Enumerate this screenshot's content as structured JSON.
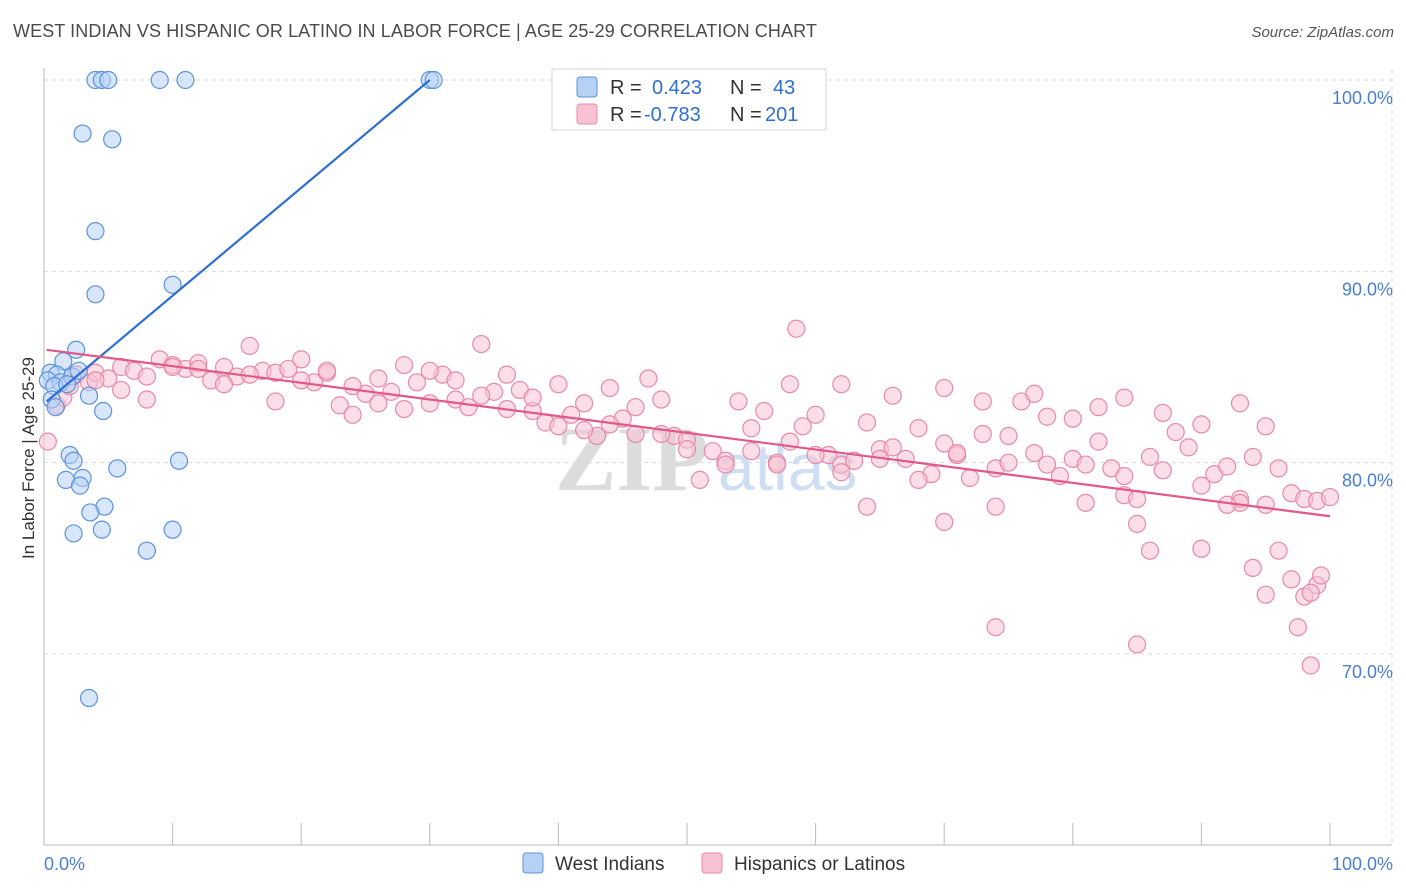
{
  "title": "WEST INDIAN VS HISPANIC OR LATINO IN LABOR FORCE | AGE 25-29 CORRELATION CHART",
  "source": "Source: ZipAtlas.com",
  "watermark": {
    "zip": "ZIP",
    "atlas": "atlas"
  },
  "colors": {
    "blue_fill": "#b7d1f5",
    "blue_stroke": "#5d93dc",
    "blue_line": "#2e6fd1",
    "pink_fill": "#f7c3d3",
    "pink_stroke": "#e889a9",
    "pink_line": "#e2588a",
    "grid": "#d9d9d9",
    "axis_text": "#4a7fcf"
  },
  "legend": {
    "rows": [
      {
        "r_label": "R =",
        "r_value": "0.423",
        "n_label": "N =",
        "n_value": "43"
      },
      {
        "r_label": "R =",
        "r_value": "-0.783",
        "n_label": "N =",
        "n_value": "201"
      }
    ]
  },
  "bottom_legend": [
    "West Indians",
    "Hispanics or Latinos"
  ],
  "chart_data": {
    "type": "scatter",
    "title": "WEST INDIAN VS HISPANIC OR LATINO IN LABOR FORCE | AGE 25-29 CORRELATION CHART",
    "ylabel": "In Labor Force | Age 25-29",
    "xlabel": "",
    "x_tick_labels": [
      "0.0%",
      "100.0%"
    ],
    "y_tick_labels": [
      "100.0%",
      "90.0%",
      "80.0%",
      "70.0%"
    ],
    "y_ticks": [
      100,
      90,
      80,
      70
    ],
    "xlim": [
      0,
      100
    ],
    "ylim": [
      60.5,
      101
    ],
    "series": [
      {
        "name": "West Indians",
        "R": 0.423,
        "N": 43,
        "trend": [
          [
            0.2,
            83.2
          ],
          [
            30,
            100
          ]
        ],
        "points": [
          [
            4,
            100
          ],
          [
            4.5,
            100
          ],
          [
            5,
            100
          ],
          [
            9,
            100
          ],
          [
            11,
            100
          ],
          [
            30,
            100
          ],
          [
            30.3,
            100
          ],
          [
            3,
            97.2
          ],
          [
            5.3,
            96.9
          ],
          [
            4,
            92.1
          ],
          [
            10,
            89.3
          ],
          [
            4,
            88.8
          ],
          [
            2.5,
            85.9
          ],
          [
            1.5,
            85.3
          ],
          [
            0.5,
            84.7
          ],
          [
            1,
            84.6
          ],
          [
            0.3,
            84.3
          ],
          [
            1.3,
            84.2
          ],
          [
            2.2,
            84.5
          ],
          [
            0.8,
            84.0
          ],
          [
            0.6,
            83.3
          ],
          [
            0.9,
            82.9
          ],
          [
            3.5,
            83.5
          ],
          [
            4.6,
            82.7
          ],
          [
            1.8,
            84.1
          ],
          [
            2.7,
            84.8
          ],
          [
            2,
            80.4
          ],
          [
            2.3,
            80.1
          ],
          [
            3,
            79.2
          ],
          [
            1.7,
            79.1
          ],
          [
            2.8,
            78.8
          ],
          [
            5.7,
            79.7
          ],
          [
            10.5,
            80.1
          ],
          [
            4.7,
            77.7
          ],
          [
            3.6,
            77.4
          ],
          [
            2.3,
            76.3
          ],
          [
            4.5,
            76.5
          ],
          [
            10,
            76.5
          ],
          [
            8,
            75.4
          ],
          [
            3.5,
            67.7
          ]
        ]
      },
      {
        "name": "Hispanics or Latinos",
        "R": -0.783,
        "N": 201,
        "trend": [
          [
            0.2,
            85.9
          ],
          [
            100,
            77.2
          ]
        ],
        "points": [
          [
            0.3,
            81.1
          ],
          [
            1,
            83
          ],
          [
            1.5,
            83.4
          ],
          [
            2,
            84
          ],
          [
            2.5,
            84.6
          ],
          [
            3.5,
            84.2
          ],
          [
            4,
            84.7
          ],
          [
            5,
            84.4
          ],
          [
            6,
            85
          ],
          [
            7,
            84.8
          ],
          [
            8,
            84.5
          ],
          [
            9,
            85.4
          ],
          [
            10,
            85.1
          ],
          [
            11,
            84.9
          ],
          [
            12,
            85.2
          ],
          [
            13,
            84.3
          ],
          [
            14,
            85
          ],
          [
            15,
            84.5
          ],
          [
            16,
            86.1
          ],
          [
            17,
            84.8
          ],
          [
            18,
            84.7
          ],
          [
            19,
            84.9
          ],
          [
            20,
            85.4
          ],
          [
            21,
            84.2
          ],
          [
            22,
            84.7
          ],
          [
            23,
            83
          ],
          [
            24,
            82.5
          ],
          [
            25,
            83.6
          ],
          [
            26,
            84.4
          ],
          [
            27,
            83.7
          ],
          [
            28,
            85.1
          ],
          [
            29,
            84.2
          ],
          [
            30,
            83.1
          ],
          [
            31,
            84.6
          ],
          [
            32,
            83.3
          ],
          [
            33,
            82.9
          ],
          [
            34,
            86.2
          ],
          [
            35,
            83.7
          ],
          [
            36,
            84.6
          ],
          [
            37,
            83.8
          ],
          [
            38,
            82.7
          ],
          [
            39,
            82.1
          ],
          [
            40,
            84.1
          ],
          [
            41,
            82.5
          ],
          [
            42,
            83.1
          ],
          [
            43,
            81.4
          ],
          [
            44,
            83.9
          ],
          [
            45,
            82.3
          ],
          [
            46,
            81.5
          ],
          [
            47,
            84.4
          ],
          [
            48,
            83.3
          ],
          [
            49,
            81.4
          ],
          [
            50,
            81.2
          ],
          [
            51,
            79.1
          ],
          [
            52,
            80.6
          ],
          [
            53,
            80.1
          ],
          [
            54,
            83.2
          ],
          [
            55,
            81.8
          ],
          [
            56,
            82.7
          ],
          [
            57,
            80
          ],
          [
            58,
            81.1
          ],
          [
            59,
            81.9
          ],
          [
            60,
            82.5
          ],
          [
            61,
            80.4
          ],
          [
            62,
            79.9
          ],
          [
            63,
            80.1
          ],
          [
            64,
            82.1
          ],
          [
            65,
            80.7
          ],
          [
            66,
            80.8
          ],
          [
            67,
            80.2
          ],
          [
            68,
            81.8
          ],
          [
            69,
            79.4
          ],
          [
            70,
            81
          ],
          [
            71,
            80.4
          ],
          [
            72,
            79.2
          ],
          [
            73,
            81.5
          ],
          [
            74,
            79.7
          ],
          [
            75,
            81.4
          ],
          [
            76,
            83.2
          ],
          [
            77,
            80.5
          ],
          [
            78,
            79.9
          ],
          [
            79,
            79.3
          ],
          [
            80,
            80.2
          ],
          [
            81,
            79.9
          ],
          [
            82,
            81.1
          ],
          [
            83,
            79.7
          ],
          [
            84,
            78.3
          ],
          [
            85,
            78.1
          ],
          [
            86,
            80.3
          ],
          [
            87,
            79.6
          ],
          [
            88,
            81.6
          ],
          [
            89,
            80.8
          ],
          [
            90,
            78.8
          ],
          [
            91,
            79.4
          ],
          [
            92,
            79.8
          ],
          [
            93,
            78.1
          ],
          [
            94,
            80.3
          ],
          [
            95,
            77.8
          ],
          [
            96,
            79.7
          ],
          [
            97,
            78.4
          ],
          [
            98,
            78.1
          ],
          [
            99,
            78
          ],
          [
            100,
            78.2
          ],
          [
            58,
            84.1
          ],
          [
            62,
            84.1
          ],
          [
            66,
            83.5
          ],
          [
            70,
            83.9
          ],
          [
            73,
            83.2
          ],
          [
            77,
            83.6
          ],
          [
            80,
            82.3
          ],
          [
            84,
            83.4
          ],
          [
            87,
            82.6
          ],
          [
            90,
            82.0
          ],
          [
            93,
            83.1
          ],
          [
            95,
            81.9
          ],
          [
            58.5,
            87.0
          ],
          [
            64,
            77.7
          ],
          [
            70,
            76.9
          ],
          [
            74,
            77.7
          ],
          [
            81,
            77.9
          ],
          [
            85,
            76.8
          ],
          [
            86,
            75.4
          ],
          [
            96,
            75.4
          ],
          [
            93,
            77.9
          ],
          [
            97,
            73.9
          ],
          [
            98,
            73
          ],
          [
            99,
            73.6
          ],
          [
            97.5,
            71.4
          ],
          [
            98.5,
            69.4
          ],
          [
            74,
            71.4
          ],
          [
            85,
            70.5
          ],
          [
            94,
            74.5
          ],
          [
            95,
            73.1
          ],
          [
            98.5,
            73.2
          ],
          [
            99.3,
            74.1
          ],
          [
            90,
            75.5
          ],
          [
            92,
            77.8
          ],
          [
            84,
            79.3
          ],
          [
            82,
            82.9
          ],
          [
            78,
            82.4
          ],
          [
            75,
            80.0
          ],
          [
            71,
            80.5
          ],
          [
            68,
            79.1
          ],
          [
            65,
            80.2
          ],
          [
            62,
            79.5
          ],
          [
            60,
            80.4
          ],
          [
            57,
            79.9
          ],
          [
            55,
            80.6
          ],
          [
            53,
            79.9
          ],
          [
            50,
            80.7
          ],
          [
            48,
            81.5
          ],
          [
            46,
            82.9
          ],
          [
            44,
            82.0
          ],
          [
            42,
            81.7
          ],
          [
            40,
            81.9
          ],
          [
            38,
            83.4
          ],
          [
            36,
            82.8
          ],
          [
            34,
            83.5
          ],
          [
            32,
            84.3
          ],
          [
            30,
            84.8
          ],
          [
            28,
            82.8
          ],
          [
            26,
            83.1
          ],
          [
            24,
            84.0
          ],
          [
            22,
            84.8
          ],
          [
            20,
            84.3
          ],
          [
            18,
            83.2
          ],
          [
            16,
            84.6
          ],
          [
            14,
            84.1
          ],
          [
            12,
            84.9
          ],
          [
            10,
            85.0
          ],
          [
            8,
            83.3
          ],
          [
            6,
            83.8
          ],
          [
            4,
            84.3
          ]
        ]
      }
    ]
  }
}
